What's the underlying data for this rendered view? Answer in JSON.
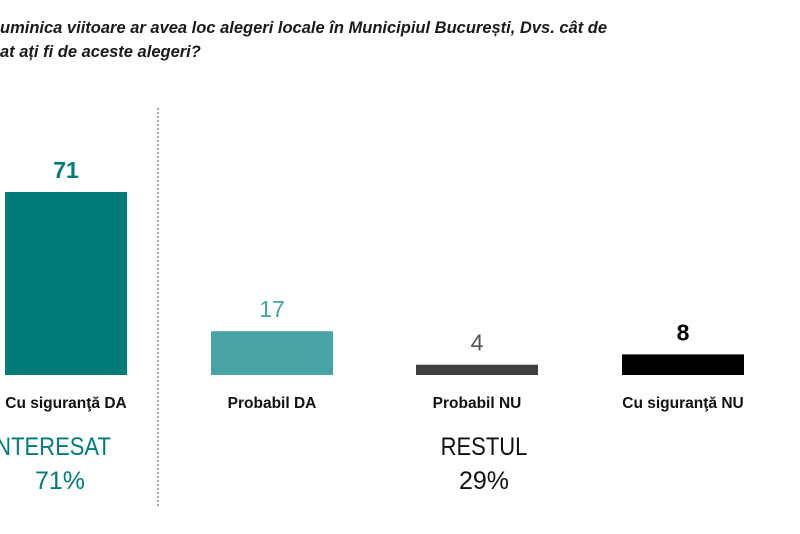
{
  "title_lines": [
    "uminica viitoare ar avea loc alegeri locale în Municipiul București, Dvs. cât de",
    "at ați fi de aceste alegeri?"
  ],
  "colors": {
    "sigur_da": "#007b79",
    "probabil_da": "#48a3a2",
    "probabil_nu": "#404040",
    "sigur_nu": "#000000"
  },
  "chart_data": {
    "type": "bar",
    "categories": [
      "Cu siguranţă DA",
      "Probabil DA",
      "Probabil NU",
      "Cu siguranţă NU"
    ],
    "values": [
      71,
      17,
      4,
      8
    ],
    "title": "",
    "xlabel": "",
    "ylabel": "",
    "ylim": [
      0,
      71
    ],
    "grid": false
  },
  "groups": [
    {
      "label": "INTERESAT",
      "value": "71%"
    },
    {
      "label": "RESTUL",
      "value": "29%"
    }
  ]
}
